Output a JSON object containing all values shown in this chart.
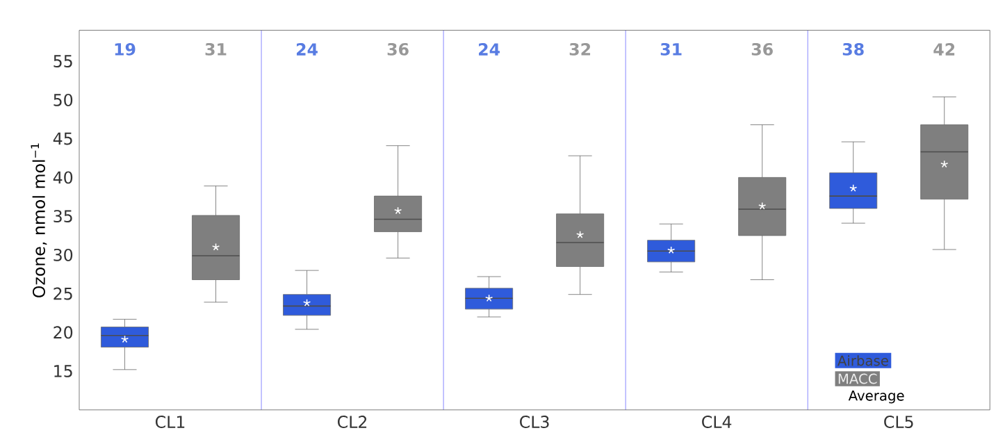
{
  "chart_data": {
    "type": "box",
    "ylabel": "Ozone, nmol mol$^{−1}$",
    "categories": [
      "CL1",
      "CL2",
      "CL3",
      "CL4",
      "CL5"
    ],
    "ylim": [
      10,
      59
    ],
    "yticks": [
      15,
      20,
      25,
      30,
      35,
      40,
      45,
      50,
      55
    ],
    "grid": "x",
    "legend": "bottom right",
    "marker": "star",
    "annotations": [
      "Average"
    ],
    "series": [
      {
        "name": "Airbase",
        "color": "#2f5bdb",
        "value_labels": [
          "19",
          "24",
          "24",
          "31",
          "38"
        ],
        "boxes": [
          {
            "low": 15.2,
            "q1": 18.1,
            "median": 19.6,
            "q3": 20.7,
            "high": 21.7,
            "mean": 19.1
          },
          {
            "low": 20.4,
            "q1": 22.2,
            "median": 23.4,
            "q3": 24.9,
            "high": 28.0,
            "mean": 23.8
          },
          {
            "low": 22.0,
            "q1": 23.0,
            "median": 24.4,
            "q3": 25.7,
            "high": 27.2,
            "mean": 24.4
          },
          {
            "low": 27.8,
            "q1": 29.1,
            "median": 30.5,
            "q3": 31.9,
            "high": 34.0,
            "mean": 30.6
          },
          {
            "low": 34.1,
            "q1": 36.0,
            "median": 37.6,
            "q3": 40.6,
            "high": 44.6,
            "mean": 38.6
          }
        ]
      },
      {
        "name": "MACC",
        "color": "#7f7f7f",
        "value_labels": [
          "31",
          "36",
          "32",
          "36",
          "42"
        ],
        "boxes": [
          {
            "low": 23.9,
            "q1": 26.8,
            "median": 29.9,
            "q3": 35.1,
            "high": 38.9,
            "mean": 31.0
          },
          {
            "low": 29.6,
            "q1": 33.0,
            "median": 34.6,
            "q3": 37.6,
            "high": 44.1,
            "mean": 35.7
          },
          {
            "low": 24.9,
            "q1": 28.5,
            "median": 31.6,
            "q3": 35.3,
            "high": 42.8,
            "mean": 32.6
          },
          {
            "low": 26.8,
            "q1": 32.5,
            "median": 35.9,
            "q3": 40.0,
            "high": 46.8,
            "mean": 36.3
          },
          {
            "low": 30.7,
            "q1": 37.2,
            "median": 43.3,
            "q3": 46.8,
            "high": 50.4,
            "mean": 41.7
          }
        ]
      }
    ]
  }
}
